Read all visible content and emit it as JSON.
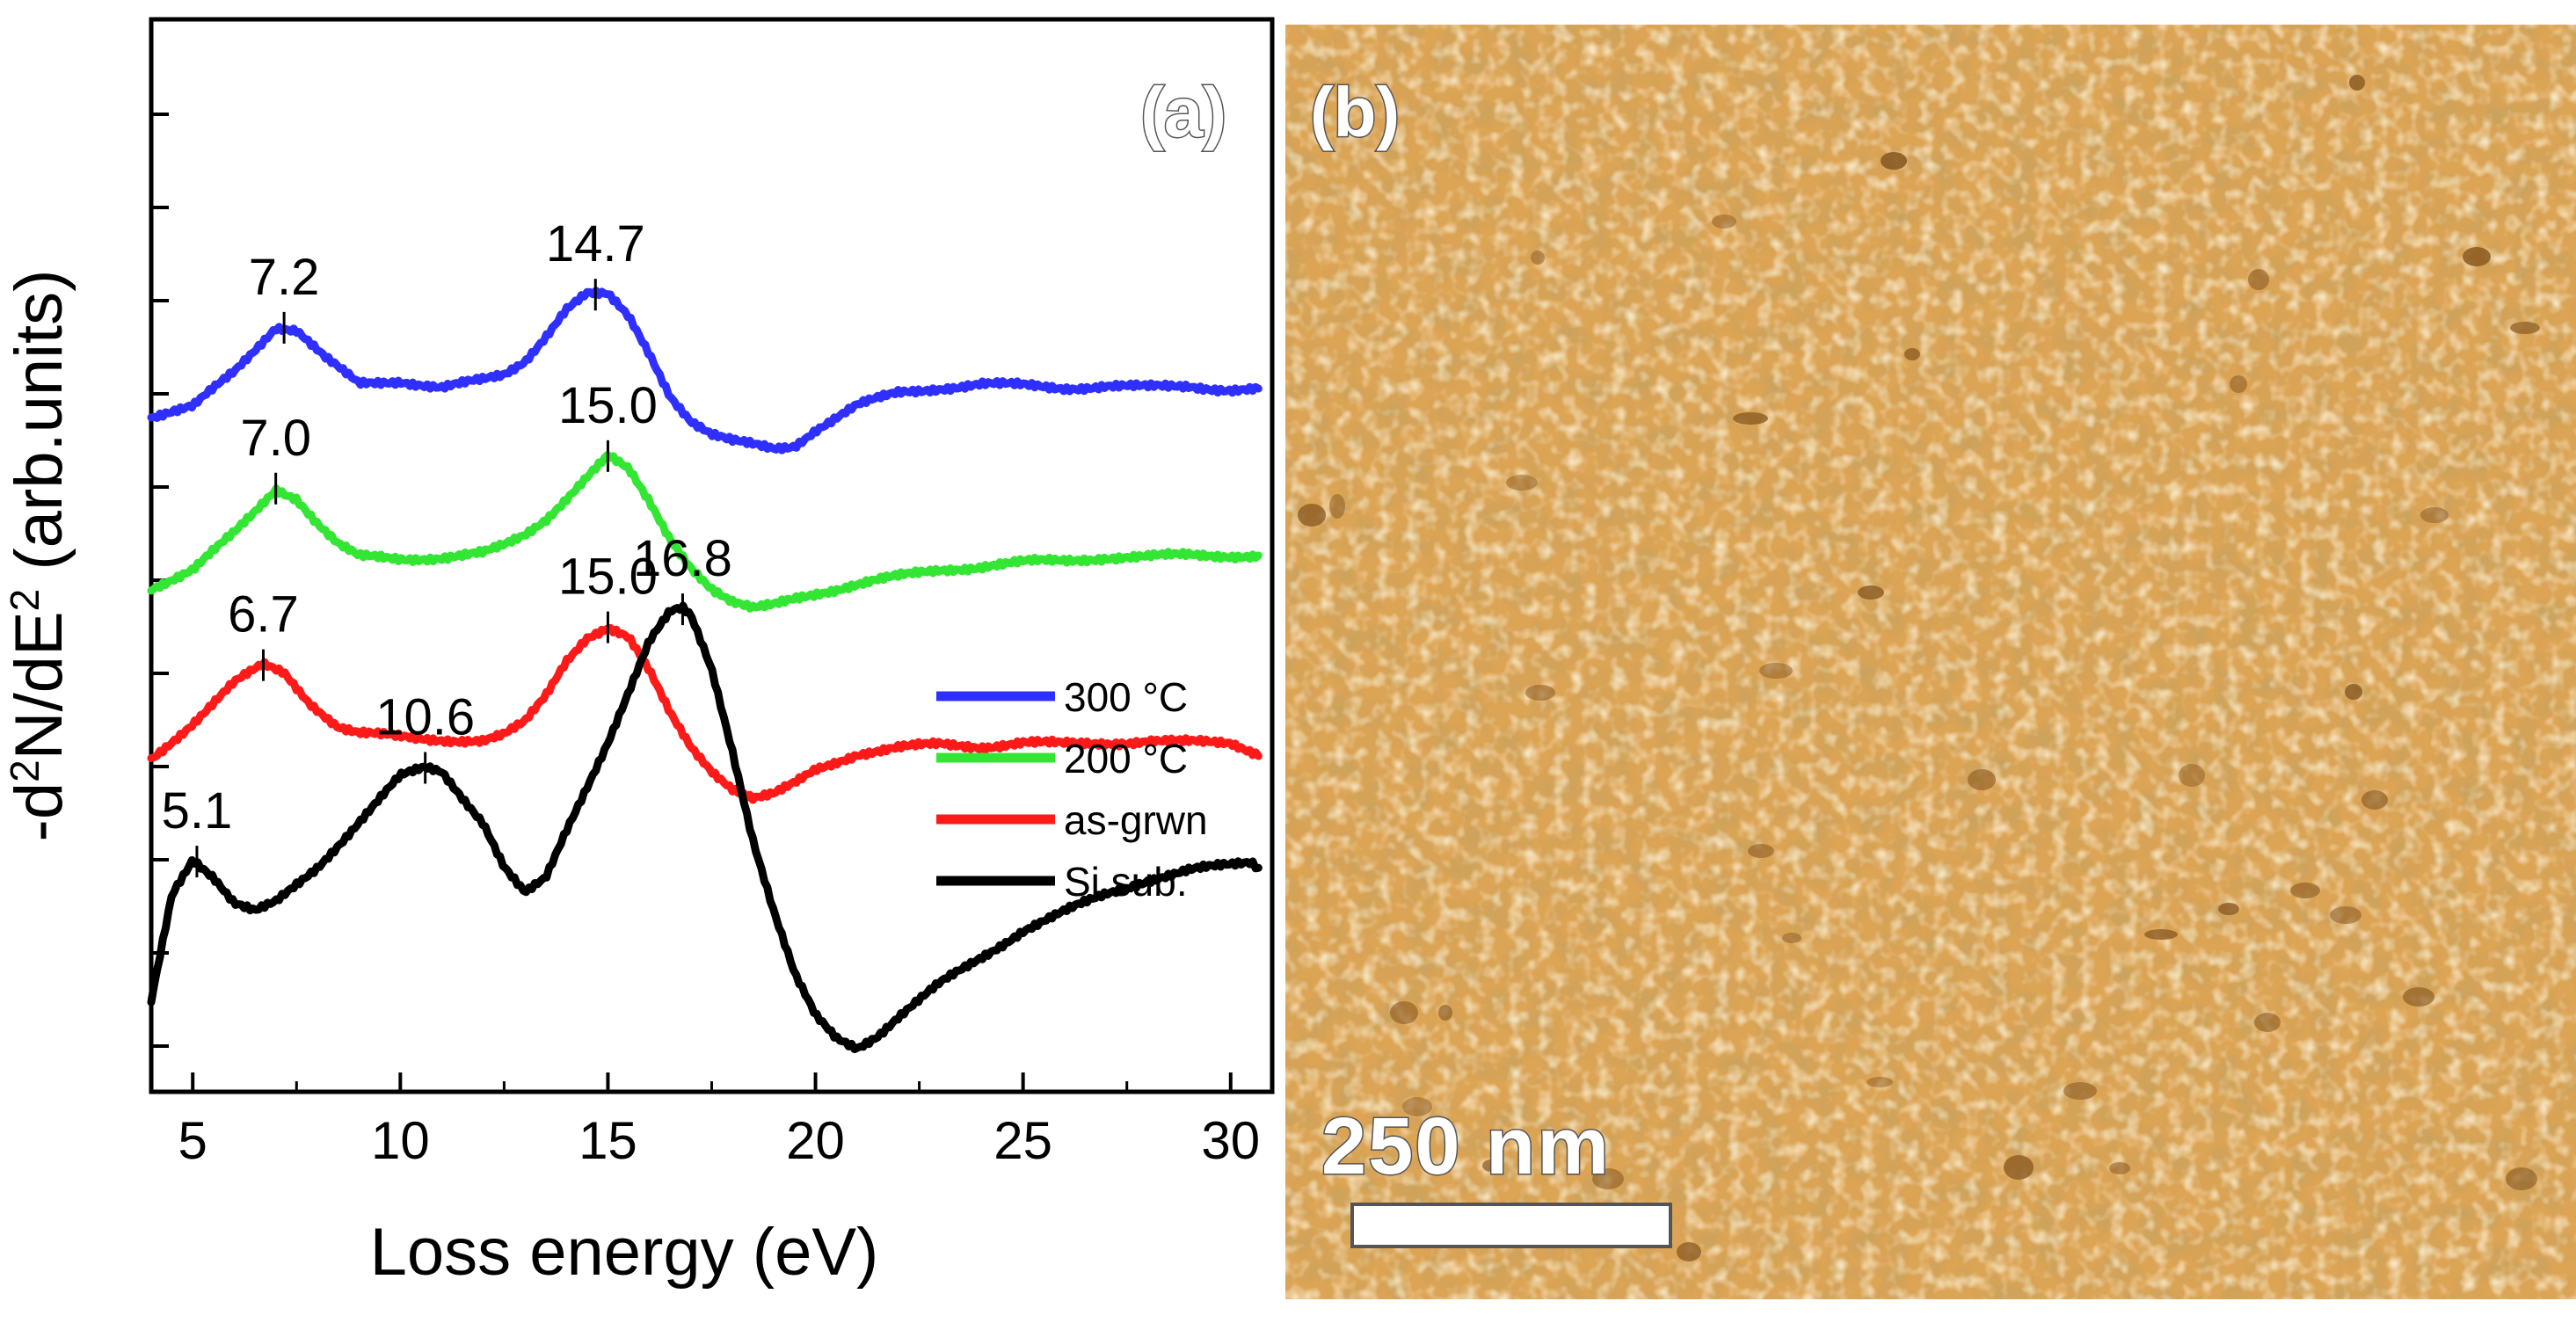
{
  "chart_data": {
    "type": "line",
    "panel_label": "(a)",
    "xlabel": "Loss energy (eV)",
    "ylabel": "-d²N/dE² (arb.units)",
    "ylabel_parts": {
      "prefix": "-d",
      "sup1": "2",
      "middle": "N/dE",
      "sup2": "2",
      "suffix": " (arb.units)"
    },
    "xlim": [
      4,
      31
    ],
    "xticks": [
      5,
      10,
      15,
      20,
      25,
      30
    ],
    "xtick_labels": [
      "5",
      "10",
      "15",
      "20",
      "25",
      "30"
    ],
    "legend": {
      "position": "lower-right",
      "entries": [
        "300 °C",
        "200 °C",
        "as-grwn",
        "Si sub."
      ]
    },
    "colors": {
      "300C": "#2f2fff",
      "200C": "#33e633",
      "asgrown": "#ff1a1a",
      "si": "#000000",
      "axis": "#000000"
    },
    "series": [
      {
        "name": "300 °C",
        "key": "300C",
        "offset": 3,
        "x": [
          4.0,
          5.0,
          6.0,
          7.0,
          7.5,
          8.2,
          9.0,
          10.0,
          11.0,
          12.0,
          12.5,
          13.0,
          13.5,
          14.0,
          14.5,
          15.0,
          15.5,
          16.0,
          16.5,
          17.0,
          17.5,
          18.0,
          18.5,
          19.0,
          19.5,
          20.0,
          21.0,
          22.0,
          23.0,
          24.0,
          25.0,
          26.0,
          27.0,
          28.0,
          29.0,
          30.0,
          30.7
        ],
        "y": [
          0.0,
          0.05,
          0.25,
          0.5,
          0.48,
          0.32,
          0.18,
          0.2,
          0.16,
          0.2,
          0.23,
          0.31,
          0.45,
          0.6,
          0.68,
          0.67,
          0.55,
          0.35,
          0.12,
          -0.02,
          -0.1,
          -0.14,
          -0.16,
          -0.18,
          -0.16,
          -0.07,
          0.06,
          0.13,
          0.16,
          0.18,
          0.17,
          0.16,
          0.17,
          0.16,
          0.17,
          0.15,
          0.15
        ]
      },
      {
        "name": "200 °C",
        "key": "200C",
        "offset": 2,
        "x": [
          4.0,
          5.0,
          6.0,
          6.5,
          7.0,
          7.5,
          8.0,
          8.5,
          9.0,
          10.0,
          11.0,
          12.0,
          12.5,
          13.0,
          13.5,
          14.0,
          14.5,
          15.0,
          15.5,
          16.0,
          16.5,
          17.0,
          17.5,
          18.0,
          18.5,
          19.0,
          19.5,
          20.0,
          21.0,
          22.0,
          23.0,
          24.0,
          25.0,
          26.0,
          27.0,
          28.0,
          29.0,
          30.0,
          30.7
        ],
        "y": [
          0.0,
          0.1,
          0.3,
          0.42,
          0.55,
          0.5,
          0.36,
          0.24,
          0.17,
          0.16,
          0.17,
          0.19,
          0.23,
          0.29,
          0.38,
          0.5,
          0.62,
          0.73,
          0.65,
          0.47,
          0.27,
          0.12,
          0.0,
          -0.08,
          -0.12,
          -0.1,
          -0.06,
          -0.03,
          0.02,
          0.06,
          0.1,
          0.12,
          0.14,
          0.15,
          0.17,
          0.17,
          0.18,
          0.18,
          0.18
        ]
      },
      {
        "name": "as-grwn",
        "key": "asgrown",
        "offset": 1,
        "x": [
          4.0,
          5.0,
          6.0,
          6.7,
          7.2,
          7.8,
          8.5,
          9.0,
          10.0,
          11.0,
          12.0,
          12.5,
          13.0,
          13.5,
          14.0,
          14.5,
          15.0,
          15.5,
          16.0,
          16.5,
          17.0,
          17.5,
          18.0,
          18.5,
          19.0,
          19.5,
          20.0,
          21.0,
          22.0,
          23.0,
          24.0,
          25.0,
          26.0,
          27.0,
          28.0,
          29.0,
          30.0,
          30.7
        ],
        "y": [
          0.0,
          0.2,
          0.42,
          0.52,
          0.48,
          0.32,
          0.18,
          0.14,
          0.12,
          0.11,
          0.1,
          0.13,
          0.2,
          0.35,
          0.55,
          0.68,
          0.73,
          0.67,
          0.48,
          0.25,
          0.07,
          -0.06,
          -0.16,
          -0.22,
          -0.2,
          -0.14,
          -0.06,
          0.03,
          0.06,
          0.08,
          0.07,
          0.09,
          0.08,
          0.09,
          0.1,
          0.09,
          0.09,
          0.03
        ]
      },
      {
        "name": "Si sub.",
        "key": "si",
        "offset": 0,
        "x": [
          4.0,
          4.5,
          5.0,
          5.5,
          6.0,
          6.5,
          7.0,
          8.0,
          9.0,
          10.0,
          10.6,
          11.0,
          12.0,
          12.5,
          13.0,
          13.5,
          14.0,
          15.0,
          16.0,
          16.5,
          16.8,
          17.0,
          17.5,
          18.0,
          18.5,
          19.0,
          19.5,
          20.0,
          20.5,
          21.0,
          21.5,
          22.0,
          23.0,
          24.0,
          25.0,
          26.0,
          27.0,
          28.0,
          29.0,
          30.0,
          30.5,
          30.7
        ],
        "y": [
          -0.4,
          0.2,
          0.4,
          0.3,
          0.15,
          0.1,
          0.15,
          0.35,
          0.6,
          0.85,
          0.9,
          0.88,
          0.6,
          0.35,
          0.2,
          0.28,
          0.55,
          1.05,
          1.6,
          1.76,
          1.78,
          1.74,
          1.45,
          1.0,
          0.5,
          0.1,
          -0.25,
          -0.48,
          -0.6,
          -0.65,
          -0.58,
          -0.48,
          -0.3,
          -0.15,
          0.0,
          0.1,
          0.2,
          0.28,
          0.33,
          0.36,
          0.38,
          0.34
        ]
      }
    ],
    "peak_annotations": [
      {
        "series": "300C",
        "x": 7.2,
        "label": "7.2"
      },
      {
        "series": "300C",
        "x": 14.7,
        "label": "14.7"
      },
      {
        "series": "200C",
        "x": 7.0,
        "label": "7.0"
      },
      {
        "series": "200C",
        "x": 15.0,
        "label": "15.0"
      },
      {
        "series": "asgrown",
        "x": 6.7,
        "label": "6.7"
      },
      {
        "series": "asgrown",
        "x": 15.0,
        "label": "15.0"
      },
      {
        "series": "si",
        "x": 5.1,
        "label": "5.1"
      },
      {
        "series": "si",
        "x": 10.6,
        "label": "10.6"
      },
      {
        "series": "si",
        "x": 16.8,
        "label": "16.8"
      }
    ]
  },
  "image_panel": {
    "label": "(b)",
    "scale_bar_label": "250 nm",
    "colors": {
      "base": "#dca455",
      "light": "#f6dca0",
      "dark": "#8a5a22"
    }
  }
}
